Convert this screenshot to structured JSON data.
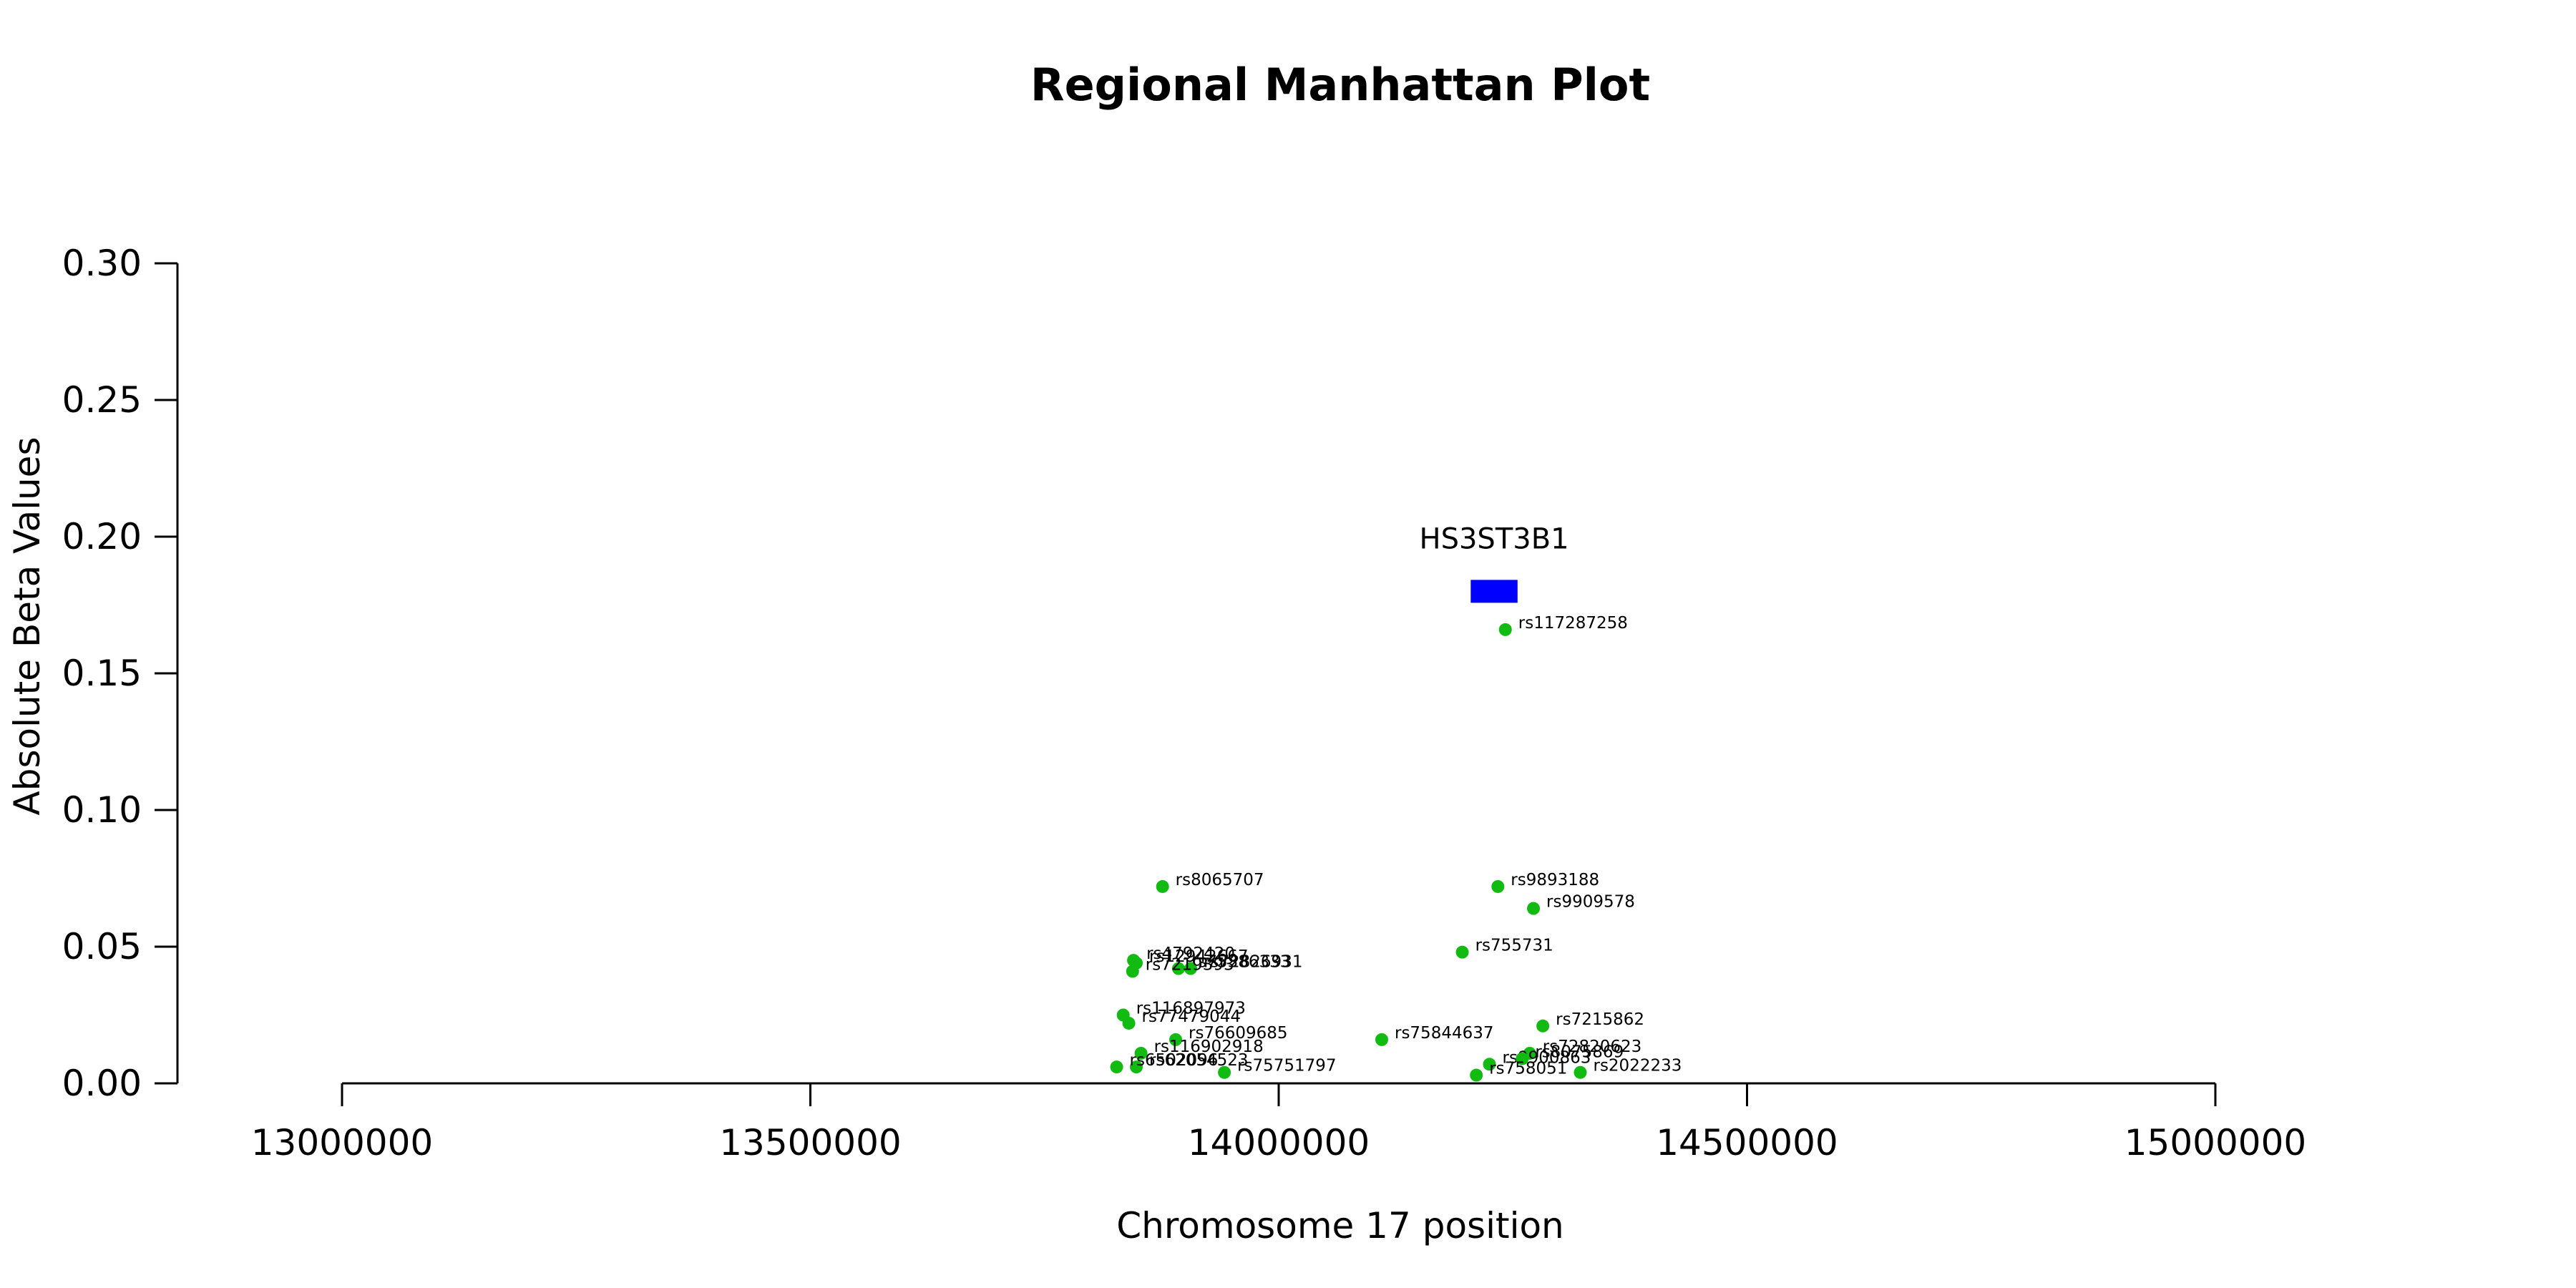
{
  "chart_data": {
    "type": "scatter",
    "title": "Regional Manhattan Plot",
    "xlabel": "Chromosome 17 position",
    "ylabel": "Absolute Beta Values",
    "xlim": [
      12825000,
      15000000
    ],
    "ylim": [
      0,
      0.3
    ],
    "x_ticks": [
      13000000,
      13500000,
      14000000,
      14500000,
      15000000
    ],
    "x_tick_labels": [
      "13000000",
      "13500000",
      "14000000",
      "14500000",
      "15000000"
    ],
    "y_ticks": [
      0.0,
      0.05,
      0.1,
      0.15,
      0.2,
      0.25,
      0.3
    ],
    "y_tick_labels": [
      "0.00",
      "0.05",
      "0.10",
      "0.15",
      "0.20",
      "0.25",
      "0.30"
    ],
    "grid": false,
    "point_color": "#11bb11",
    "gene_color": "#0000ff",
    "gene": {
      "name": "HS3ST3B1",
      "start": 14205000,
      "end": 14255000,
      "y": 0.18
    },
    "series": [
      {
        "points": [
          {
            "label": "rs117287258",
            "x": 14242000,
            "y": 0.166
          },
          {
            "label": "rs8065707",
            "x": 13876000,
            "y": 0.072
          },
          {
            "label": "rs9893188",
            "x": 14234000,
            "y": 0.072
          },
          {
            "label": "rs9909578",
            "x": 14272000,
            "y": 0.064
          },
          {
            "label": "rs755731",
            "x": 14196000,
            "y": 0.048
          },
          {
            "label": "rs4792420",
            "x": 13845000,
            "y": 0.045
          },
          {
            "label": "rs12942667",
            "x": 13848000,
            "y": 0.044
          },
          {
            "label": "rs75386333",
            "x": 13893000,
            "y": 0.042
          },
          {
            "label": "rs72826931",
            "x": 13906000,
            "y": 0.042
          },
          {
            "label": "rs7219393",
            "x": 13844000,
            "y": 0.041
          },
          {
            "label": "rs116897973",
            "x": 13834000,
            "y": 0.025
          },
          {
            "label": "rs77479044",
            "x": 13840000,
            "y": 0.022
          },
          {
            "label": "rs7215862",
            "x": 14282000,
            "y": 0.021
          },
          {
            "label": "rs76609685",
            "x": 13890000,
            "y": 0.016
          },
          {
            "label": "rs75844637",
            "x": 14110000,
            "y": 0.016
          },
          {
            "label": "rs116902918",
            "x": 13853000,
            "y": 0.011
          },
          {
            "label": "rs72820623",
            "x": 14268000,
            "y": 0.011
          },
          {
            "label": "rs9900863",
            "x": 14225000,
            "y": 0.007
          },
          {
            "label": "rs8075869",
            "x": 14260000,
            "y": 0.009
          },
          {
            "label": "rs62054523",
            "x": 13848000,
            "y": 0.006
          },
          {
            "label": "rs6502096",
            "x": 13827000,
            "y": 0.006
          },
          {
            "label": "rs75751797",
            "x": 13942000,
            "y": 0.004
          },
          {
            "label": "rs758051",
            "x": 14211000,
            "y": 0.003
          },
          {
            "label": "rs2022233",
            "x": 14322000,
            "y": 0.004
          }
        ]
      }
    ]
  }
}
